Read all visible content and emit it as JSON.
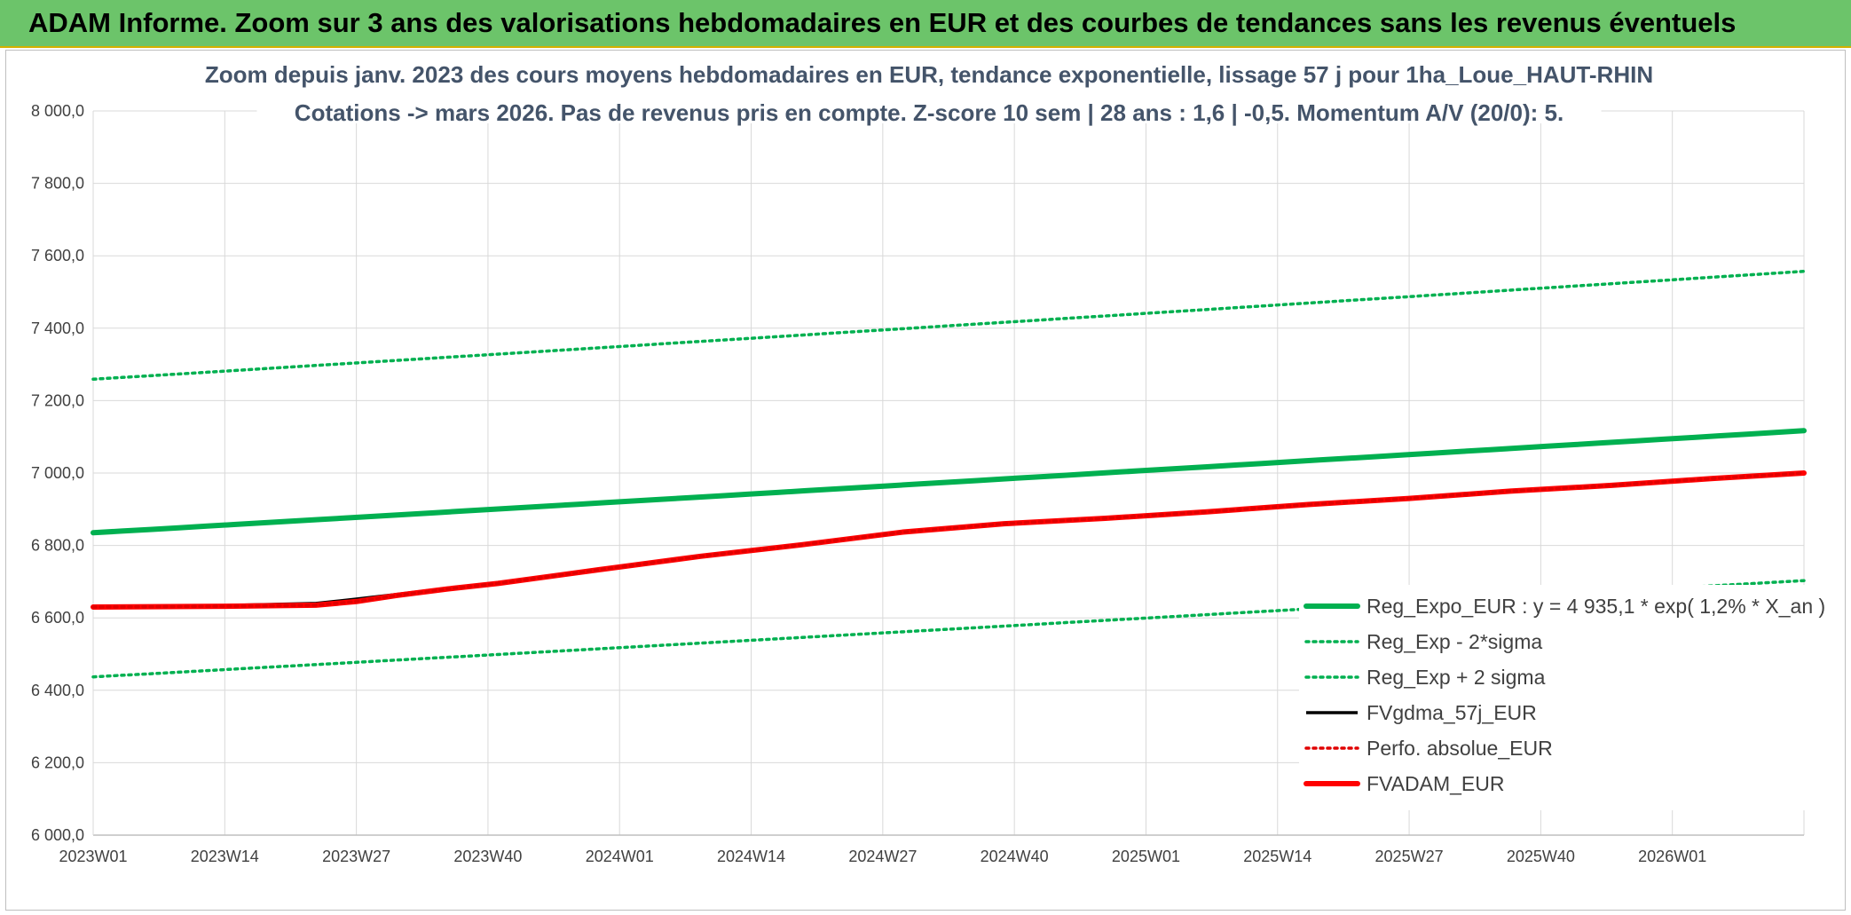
{
  "banner": {
    "title": "ADAM Informe. Zoom sur 3 ans des valorisations hebdomadaires en EUR et des courbes de tendances sans les revenus éventuels"
  },
  "colors": {
    "banner_bg": "#6cc46a",
    "trend": "#00b050",
    "price": "#000000",
    "perf": "#e00000",
    "fvadam": "#ff0000",
    "title": "#44546a"
  },
  "chart_data": {
    "type": "line",
    "title_lines": [
      "Zoom depuis janv. 2023 des cours moyens hebdomadaires en EUR, tendance exponentielle, lissage 57 j pour 1ha_Loue_HAUT-RHIN",
      "Cotations -> mars 2026. Pas de revenus pris en compte. Z-score 10 sem | 28 ans : 1,6 | -0,5. Momentum A/V (20/0): 5."
    ],
    "x_tick_labels": [
      "2023W01",
      "2023W14",
      "2023W27",
      "2023W40",
      "2024W01",
      "2024W14",
      "2024W27",
      "2024W40",
      "2025W01",
      "2025W14",
      "2025W27",
      "2025W40",
      "2026W01"
    ],
    "x_range_weeks": [
      0,
      169
    ],
    "y_tick_labels": [
      "6 000,0",
      "6 200,0",
      "6 400,0",
      "6 600,0",
      "6 800,0",
      "7 000,0",
      "7 200,0",
      "7 400,0",
      "7 600,0",
      "7 800,0",
      "8 000,0"
    ],
    "ylim": [
      6000,
      8000
    ],
    "grid": true,
    "legend_position": "right",
    "series": [
      {
        "name": "Reg_Expo_EUR : y = 4 935,1 * exp( 1,2% *  X_an )",
        "style": "solid-thick",
        "color": "#00b050",
        "x": [
          0,
          169
        ],
        "y": [
          6835,
          7117
        ],
        "curve": "exp"
      },
      {
        "name": "Reg_Exp - 2*sigma",
        "style": "dotted",
        "color": "#00b050",
        "x": [
          0,
          169
        ],
        "y": [
          6437,
          6703
        ],
        "curve": "exp"
      },
      {
        "name": "Reg_Exp + 2 sigma",
        "style": "dotted",
        "color": "#00b050",
        "x": [
          0,
          169
        ],
        "y": [
          7259,
          7557
        ],
        "curve": "exp"
      },
      {
        "name": "FVgdma_57j_EUR",
        "style": "solid",
        "color": "#000000",
        "x": [
          0,
          13,
          22,
          26,
          30,
          35,
          40,
          50,
          60,
          70,
          80,
          90,
          100,
          110,
          120,
          130,
          140,
          150,
          160,
          169
        ],
        "y": [
          6630,
          6634,
          6640,
          6652,
          6665,
          6682,
          6697,
          6735,
          6770,
          6800,
          6835,
          6858,
          6874,
          6893,
          6913,
          6930,
          6950,
          6966,
          6985,
          7000
        ]
      },
      {
        "name": "Perfo. absolue_EUR",
        "style": "dotted",
        "color": "#e00000",
        "x": [
          0,
          13,
          22,
          26,
          30,
          35,
          40,
          50,
          60,
          70,
          80,
          90,
          100,
          110,
          120,
          130,
          140,
          150,
          160,
          169
        ],
        "y": [
          6630,
          6632,
          6635,
          6645,
          6662,
          6680,
          6695,
          6733,
          6770,
          6802,
          6837,
          6860,
          6875,
          6893,
          6913,
          6930,
          6950,
          6966,
          6985,
          7000
        ]
      },
      {
        "name": "FVADAM_EUR",
        "style": "solid-thick",
        "color": "#ff0000",
        "x": [
          0,
          13,
          22,
          26,
          30,
          35,
          40,
          50,
          60,
          70,
          80,
          90,
          100,
          110,
          120,
          130,
          140,
          150,
          160,
          169
        ],
        "y": [
          6630,
          6632,
          6635,
          6645,
          6662,
          6680,
          6695,
          6733,
          6770,
          6802,
          6837,
          6860,
          6875,
          6893,
          6913,
          6930,
          6950,
          6966,
          6985,
          7000
        ]
      }
    ]
  }
}
